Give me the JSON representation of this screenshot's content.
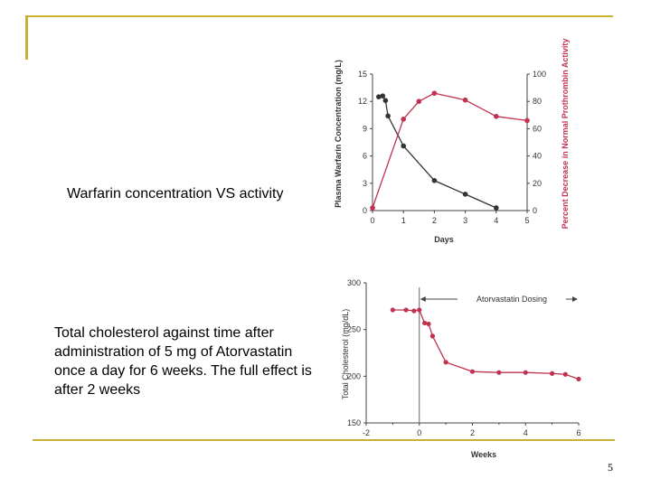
{
  "slide": {
    "caption_warfarin": "Warfarin concentration VS activity",
    "caption_atorvastatin": "Total cholesterol against time after administration of 5 mg of Atorvastatin once a day for 6 weeks. The full effect is after 2 weeks",
    "page_number": "5",
    "accent_color": "#c9b037"
  },
  "chart_data": [
    {
      "type": "line",
      "xlabel": "Days",
      "ylabel": "Plasma Warfarin Concentration (mg/L)",
      "y2label": "Percent Decrease in Normal Prothrombin Activity",
      "xlim": [
        0,
        5
      ],
      "ylim": [
        0,
        15
      ],
      "y2lim": [
        0,
        100
      ],
      "x_ticks": [
        0,
        1,
        2,
        3,
        4,
        5
      ],
      "y_ticks": [
        0,
        3,
        6,
        9,
        12,
        15
      ],
      "y2_ticks": [
        0,
        20,
        40,
        60,
        80,
        100
      ],
      "grid": false,
      "series": [
        {
          "axis": "left",
          "color": "#333333",
          "x": [
            0.2,
            0.33,
            0.42,
            0.5,
            1.0,
            2.0,
            3.0,
            4.0
          ],
          "y": [
            12.5,
            12.6,
            12.1,
            10.4,
            7.1,
            3.3,
            1.8,
            0.3
          ]
        },
        {
          "axis": "right",
          "color": "#c0324f",
          "x": [
            0.0,
            1.0,
            1.5,
            2.0,
            3.0,
            4.0,
            5.0
          ],
          "y": [
            2,
            67,
            80,
            86,
            81,
            69,
            66
          ]
        }
      ]
    },
    {
      "type": "line",
      "xlabel": "Weeks",
      "ylabel": "Total Cholesterol (mg/dL)",
      "annotation": "Atorvastatin Dosing",
      "xlim": [
        -2,
        6
      ],
      "ylim": [
        150,
        300
      ],
      "x_ticks": [
        -2,
        0,
        2,
        4,
        6
      ],
      "y_ticks": [
        150,
        200,
        250,
        300
      ],
      "grid": false,
      "series": [
        {
          "color": "#c0324f",
          "x": [
            -1.0,
            -0.5,
            -0.2,
            0.0,
            0.2,
            0.35,
            0.5,
            1.0,
            2.0,
            3.0,
            4.0,
            5.0,
            5.5,
            6.0
          ],
          "y": [
            271,
            271,
            270,
            271,
            257,
            256,
            243,
            215,
            205,
            204,
            204,
            203,
            202,
            197
          ]
        }
      ]
    }
  ]
}
